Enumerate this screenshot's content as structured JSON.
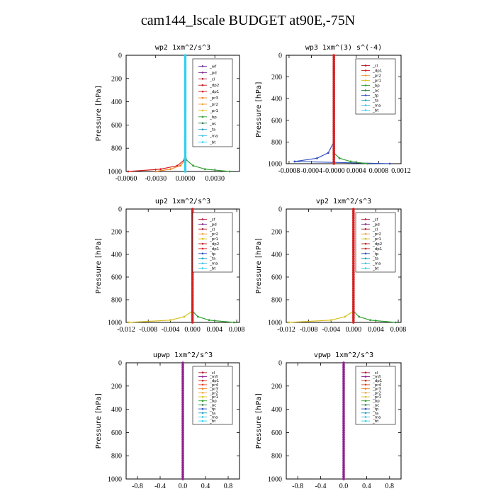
{
  "title": "cam144_lscale  BUDGET at90E,-75N",
  "colors": {
    "_wf": "#7030a0",
    "_pd": "#7b2a8f",
    "_cl": "#b01830",
    "_dp2": "#c01c1c",
    "_dp1": "#d42020",
    "_pr3": "#f08020",
    "_pr2": "#f0a040",
    "_pr1": "#d8c020",
    "_bp": "#30a030",
    "_ac": "#2a7a4a",
    "_tp": "#3050c0",
    "_ta": "#20a0c0",
    "_ma": "#40c0e0",
    "_bt": "#30d0f0",
    "_sf": "#c02040",
    "_mfl": "#902090",
    "_pr4": "#e04020"
  },
  "chart_data": [
    {
      "type": "line",
      "title": "wp2   1xm^2/s^3",
      "ylabel": "Pressure [hPa]",
      "ylim": [
        1000,
        0
      ],
      "xlim": [
        -0.006,
        0.0055
      ],
      "xticks": [
        -0.006,
        -0.003,
        0.0,
        0.003
      ],
      "xtick_labels": [
        "-0.0060",
        "-0.0030",
        "0.0000",
        "0.0030"
      ],
      "yticks": [
        0,
        200,
        400,
        600,
        800,
        1000
      ],
      "legend": [
        "_wf",
        "_pd",
        "_cl",
        "_dp2",
        "_dp1",
        "_pr3",
        "_pr2",
        "_pr1",
        "_bp",
        "_ac",
        "_ta",
        "_ma",
        "_bt"
      ],
      "dominant": "_bt",
      "pressure": [
        0,
        100,
        200,
        300,
        400,
        500,
        600,
        700,
        800,
        900,
        950,
        980,
        1000
      ],
      "series": [
        {
          "name": "_bp",
          "x": [
            0,
            0,
            0,
            0,
            0,
            0,
            0,
            0,
            0,
            0.0001,
            0.0008,
            0.002,
            0.0045
          ]
        },
        {
          "name": "_dp1",
          "x": [
            0,
            0,
            0,
            0,
            0,
            0,
            0,
            0,
            0,
            -0.0001,
            -0.0008,
            -0.0025,
            -0.0058
          ]
        },
        {
          "name": "_pr3",
          "x": [
            0,
            0,
            0,
            0,
            0,
            0,
            0,
            0,
            0,
            0,
            -0.0005,
            -0.0015,
            -0.003
          ]
        }
      ]
    },
    {
      "type": "line",
      "title": "wp3   1xm^(3) s^(-4)",
      "ylabel": "Pressure [hPa]",
      "ylim": [
        1000,
        0
      ],
      "xlim": [
        -0.00085,
        0.0012
      ],
      "xticks": [
        -0.0008,
        -0.0004,
        0.0,
        0.0004,
        0.0008,
        0.0012
      ],
      "xtick_labels": [
        "-0.0008",
        "-0.0004",
        "-0.0000",
        "0.0004",
        "0.0008",
        "0.0012"
      ],
      "yticks": [
        0,
        200,
        400,
        600,
        800,
        1000
      ],
      "legend": [
        "_cl",
        "_dp1",
        "_pr2",
        "_pr1",
        "_bp",
        "_ac",
        "_tp",
        "_ta",
        "_ma",
        "_bt"
      ],
      "dominant": "_dp1",
      "pressure": [
        0,
        100,
        200,
        300,
        400,
        500,
        600,
        700,
        800,
        900,
        950,
        980,
        1000
      ],
      "series": [
        {
          "name": "_tp",
          "x": [
            0,
            0,
            0,
            0,
            0,
            0,
            0,
            0,
            0,
            -0.0001,
            -0.0003,
            -0.0007,
            0.001
          ]
        },
        {
          "name": "_bp",
          "x": [
            0,
            0,
            0,
            0,
            0,
            0,
            0,
            0,
            0,
            0,
            0.0001,
            0.0003,
            0.0006
          ]
        }
      ]
    },
    {
      "type": "line",
      "title": "up2   1xm^2/s^3",
      "ylabel": "Pressure [hPa]",
      "ylim": [
        1000,
        0
      ],
      "xlim": [
        -0.012,
        0.0085
      ],
      "xticks": [
        -0.012,
        -0.008,
        -0.004,
        0.0,
        0.004,
        0.008
      ],
      "xtick_labels": [
        "-0.012",
        "-0.008",
        "-0.004",
        "0.000",
        "0.004",
        "0.008"
      ],
      "yticks": [
        0,
        200,
        400,
        600,
        800,
        1000
      ],
      "legend": [
        "_sf",
        "_pd",
        "_cl",
        "_pr2",
        "_pr1",
        "_dp2",
        "_dp1",
        "_tp",
        "_ta",
        "_ma",
        "_bt"
      ],
      "dominant": "_dp1",
      "pressure": [
        0,
        100,
        200,
        300,
        400,
        500,
        600,
        700,
        800,
        900,
        950,
        980,
        1000
      ],
      "series": [
        {
          "name": "_bp",
          "x": [
            0,
            0,
            0,
            0,
            0,
            0,
            0,
            0,
            0,
            0,
            0.001,
            0.003,
            0.0075
          ]
        },
        {
          "name": "_pr1",
          "x": [
            0,
            0,
            0,
            0,
            0,
            0,
            0,
            0,
            0,
            0,
            -0.0015,
            -0.004,
            -0.0115
          ]
        }
      ]
    },
    {
      "type": "line",
      "title": "vp2   1xm^2/s^3",
      "ylabel": "Pressure [hPa]",
      "ylim": [
        1000,
        0
      ],
      "xlim": [
        -0.012,
        0.0085
      ],
      "xticks": [
        -0.012,
        -0.008,
        -0.004,
        0.0,
        0.004,
        0.008
      ],
      "xtick_labels": [
        "-0.012",
        "-0.008",
        "-0.004",
        "0.000",
        "0.004",
        "0.008"
      ],
      "yticks": [
        0,
        200,
        400,
        600,
        800,
        1000
      ],
      "legend": [
        "_sf",
        "_pd",
        "_cl",
        "_pr2",
        "_pr1",
        "_dp2",
        "_dp1",
        "_tp",
        "_ta",
        "_ma",
        "_bt"
      ],
      "dominant": "_dp1",
      "pressure": [
        0,
        100,
        200,
        300,
        400,
        500,
        600,
        700,
        800,
        900,
        950,
        980,
        1000
      ],
      "series": [
        {
          "name": "_bp",
          "x": [
            0,
            0,
            0,
            0,
            0,
            0,
            0,
            0,
            0,
            0,
            0.001,
            0.003,
            0.0075
          ]
        },
        {
          "name": "_pr1",
          "x": [
            0,
            0,
            0,
            0,
            0,
            0,
            0,
            0,
            0,
            0,
            -0.0015,
            -0.004,
            -0.0115
          ]
        }
      ]
    },
    {
      "type": "line",
      "title": "upwp   1xm^2/s^3",
      "ylabel": "Pressure [hPa]",
      "ylim": [
        1000,
        0
      ],
      "xlim": [
        -1.0,
        1.0
      ],
      "xticks": [
        -0.8,
        -0.4,
        0.0,
        0.4,
        0.8
      ],
      "xtick_labels": [
        "-0.8",
        "-0.4",
        "0.0",
        "0.4",
        "0.8"
      ],
      "yticks": [
        0,
        200,
        400,
        600,
        800,
        1000
      ],
      "legend": [
        "_cl",
        "_mfl",
        "_dp1",
        "_pr4",
        "_pr3",
        "_pr2",
        "_pr1",
        "_bp",
        "_ac",
        "_tp",
        "_ta",
        "_ma",
        "_bt"
      ],
      "dominant": "_mfl",
      "pressure": [
        0,
        1000
      ],
      "series": []
    },
    {
      "type": "line",
      "title": "vpwp   1xm^2/s^3",
      "ylabel": "Pressure [hPa]",
      "ylim": [
        1000,
        0
      ],
      "xlim": [
        -1.0,
        1.0
      ],
      "xticks": [
        -0.8,
        -0.4,
        0.0,
        0.4,
        0.8
      ],
      "xtick_labels": [
        "-0.8",
        "-0.4",
        "0.0",
        "0.4",
        "0.8"
      ],
      "yticks": [
        0,
        200,
        400,
        600,
        800,
        1000
      ],
      "legend": [
        "_cl",
        "_mfl",
        "_dp1",
        "_pr4",
        "_pr3",
        "_pr2",
        "_pr1",
        "_bp",
        "_ac",
        "_tp",
        "_ta",
        "_ma",
        "_bt"
      ],
      "dominant": "_mfl",
      "pressure": [
        0,
        1000
      ],
      "series": []
    }
  ]
}
